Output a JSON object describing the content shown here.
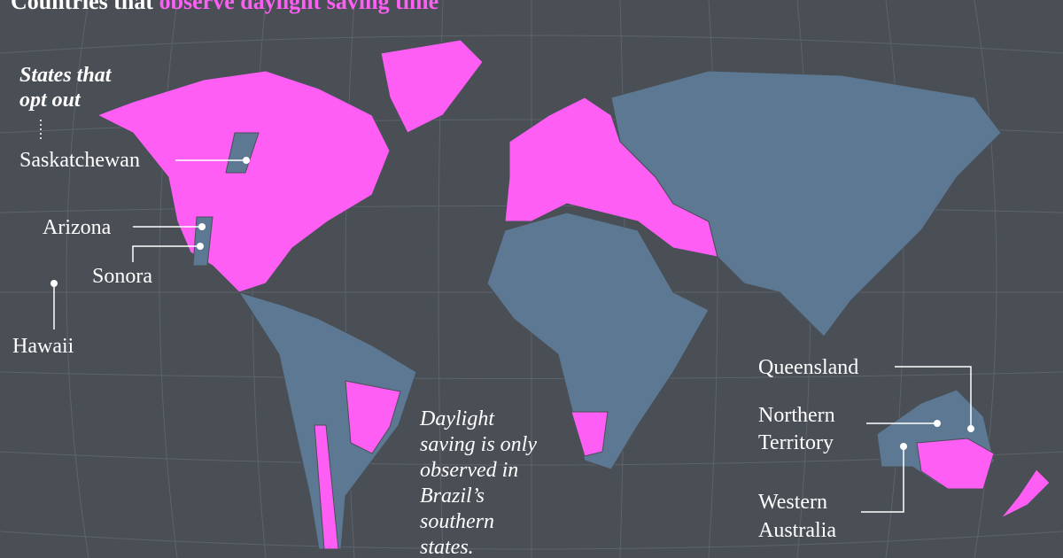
{
  "title": {
    "lead": "Countries that",
    "highlight": "observe daylight saving time"
  },
  "opt_out_heading": [
    "States that",
    "opt out"
  ],
  "labels": {
    "saskatchewan": "Saskatchewan",
    "arizona": "Arizona",
    "sonora": "Sonora",
    "hawaii": "Hawaii",
    "queensland": "Queensland",
    "northern_territory": [
      "Northern",
      "Territory"
    ],
    "western_australia": [
      "Western",
      "Australia"
    ]
  },
  "brazil_note": [
    "Daylight",
    "saving is only",
    "observed in",
    "Brazil’s",
    "southern",
    "states."
  ]
}
